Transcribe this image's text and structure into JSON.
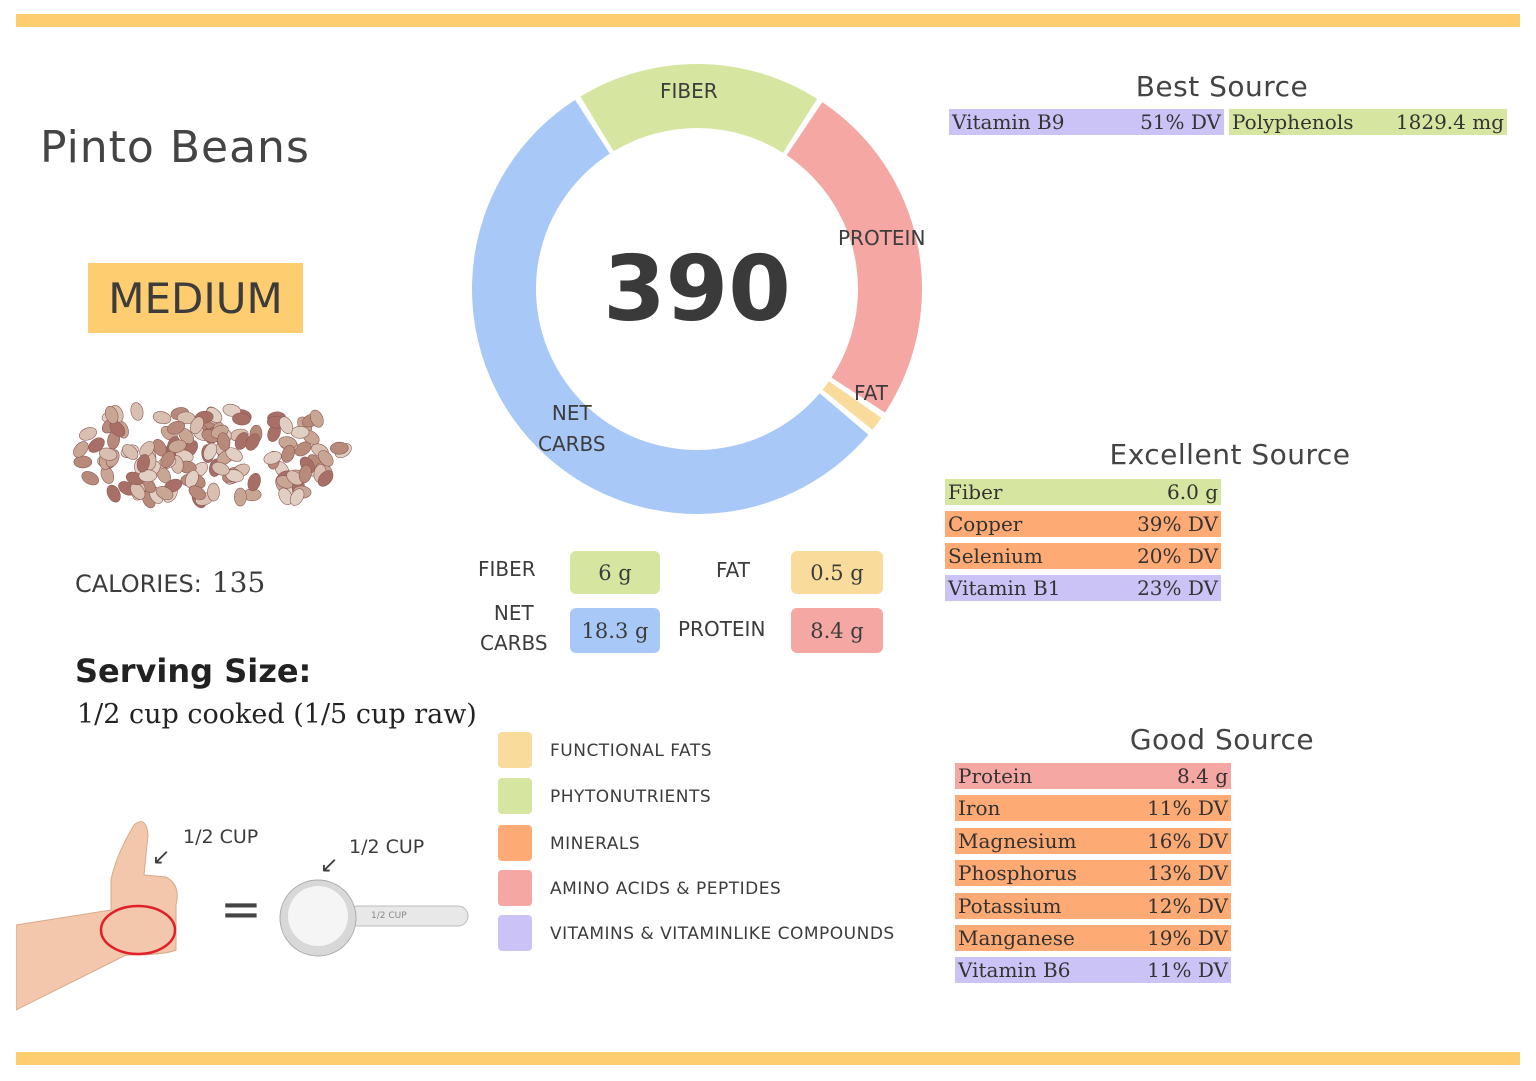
{
  "title": "Pinto Beans",
  "level": "MEDIUM",
  "calories": {
    "label": "CALORIES:",
    "value": "135"
  },
  "serving": {
    "heading": "Serving Size:",
    "value": "1/2 cup cooked (1/5 cup raw)",
    "hand_label": "1/2 CUP",
    "cup_label": "1/2 CUP",
    "cup_handle_text": "1/2 CUP",
    "equals": "="
  },
  "chart_data": {
    "type": "pie",
    "center_label": "390",
    "categories": [
      "FIBER",
      "PROTEIN",
      "FAT",
      "NET CARBS"
    ],
    "values": [
      6,
      8.4,
      0.5,
      18.3
    ],
    "colors": [
      "#d6e5a0",
      "#f4a7a3",
      "#f9dc9b",
      "#a8c9f7"
    ]
  },
  "macros": {
    "fiber": {
      "label": "FIBER",
      "value": "6 g",
      "color": "#d6e5a0"
    },
    "fat": {
      "label": "FAT",
      "value": "0.5 g",
      "color": "#f9dc9b"
    },
    "net_carbs": {
      "label1": "NET",
      "label2": "CARBS",
      "value": "18.3 g",
      "color": "#a8c9f7"
    },
    "protein": {
      "label": "PROTEIN",
      "value": "8.4 g",
      "color": "#f4a7a3"
    }
  },
  "legend": [
    {
      "label": "FUNCTIONAL  FATS",
      "color": "#f9dc9b"
    },
    {
      "label": "PHYTONUTRIENTS",
      "color": "#d6e5a0"
    },
    {
      "label": "MINERALS",
      "color": "#fdaa74"
    },
    {
      "label": "AMINO ACIDS & PEPTIDES",
      "color": "#f4a7a3"
    },
    {
      "label": "VITAMINS & VITAMINLIKE COMPOUNDS",
      "color": "#cbc3f5"
    }
  ],
  "best": {
    "title": "Best Source",
    "items": [
      {
        "name": "Vitamin B9",
        "value": "51% DV",
        "color": "#cbc3f5"
      },
      {
        "name": "Polyphenols",
        "value": "1829.4 mg",
        "color": "#d6e5a0"
      }
    ]
  },
  "excellent": {
    "title": "Excellent Source",
    "items": [
      {
        "name": "Fiber",
        "value": "6.0 g",
        "color": "#d6e5a0"
      },
      {
        "name": "Copper",
        "value": "39% DV",
        "color": "#fdaa74"
      },
      {
        "name": "Selenium",
        "value": "20% DV",
        "color": "#fdaa74"
      },
      {
        "name": "Vitamin B1",
        "value": "23% DV",
        "color": "#cbc3f5"
      }
    ]
  },
  "good": {
    "title": "Good Source",
    "items": [
      {
        "name": "Protein",
        "value": "8.4 g",
        "color": "#f4a7a3"
      },
      {
        "name": "Iron",
        "value": "11% DV",
        "color": "#fdaa74"
      },
      {
        "name": "Magnesium",
        "value": "16% DV",
        "color": "#fdaa74"
      },
      {
        "name": "Phosphorus",
        "value": "13% DV",
        "color": "#fdaa74"
      },
      {
        "name": "Potassium",
        "value": "12% DV",
        "color": "#fdaa74"
      },
      {
        "name": "Manganese",
        "value": "19% DV",
        "color": "#fdaa74"
      },
      {
        "name": "Vitamin B6",
        "value": "11% DV",
        "color": "#cbc3f5"
      }
    ]
  }
}
